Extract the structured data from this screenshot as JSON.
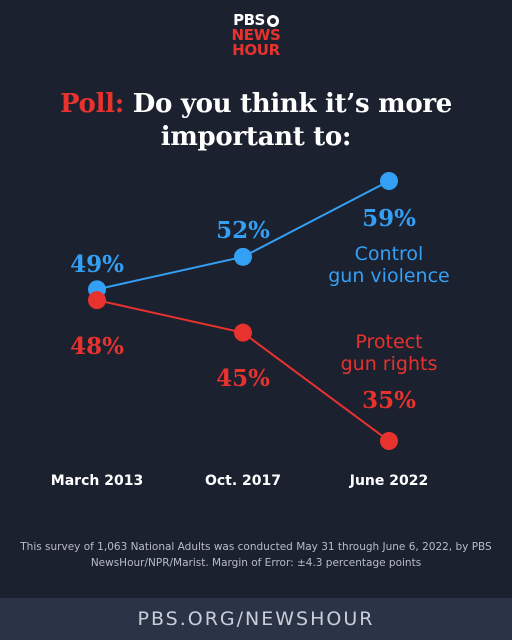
{
  "logo": {
    "line1": "PBS",
    "line2": "NEWS",
    "line3": "HOUR"
  },
  "title": {
    "prefix": "Poll:",
    "text": "Do you think it’s more important to:"
  },
  "colors": {
    "blue": "#33a0f5",
    "red": "#e8322e",
    "background": "#1c2130",
    "footer_bg": "#2b3446"
  },
  "chart_data": {
    "type": "line",
    "categories": [
      "March 2013",
      "Oct. 2017",
      "June 2022"
    ],
    "series": [
      {
        "name": "Control gun violence",
        "values": [
          49,
          52,
          59
        ],
        "labels": [
          "49%",
          "52%",
          "59%"
        ],
        "color": "#33a0f5"
      },
      {
        "name": "Protect gun rights",
        "values": [
          48,
          45,
          35
        ],
        "labels": [
          "48%",
          "45%",
          "35%"
        ],
        "color": "#e8322e"
      }
    ],
    "series_label_lines": [
      [
        "Control",
        "gun violence"
      ],
      [
        "Protect",
        "gun rights"
      ]
    ],
    "ylim": [
      30,
      62
    ],
    "grid": false
  },
  "note": "This survey of 1,063 National Adults was conducted May 31 through June 6, 2022, by PBS NewsHour/NPR/Marist. Margin of Error: ±4.3 percentage points",
  "footer": "PBS.ORG/NEWSHOUR"
}
